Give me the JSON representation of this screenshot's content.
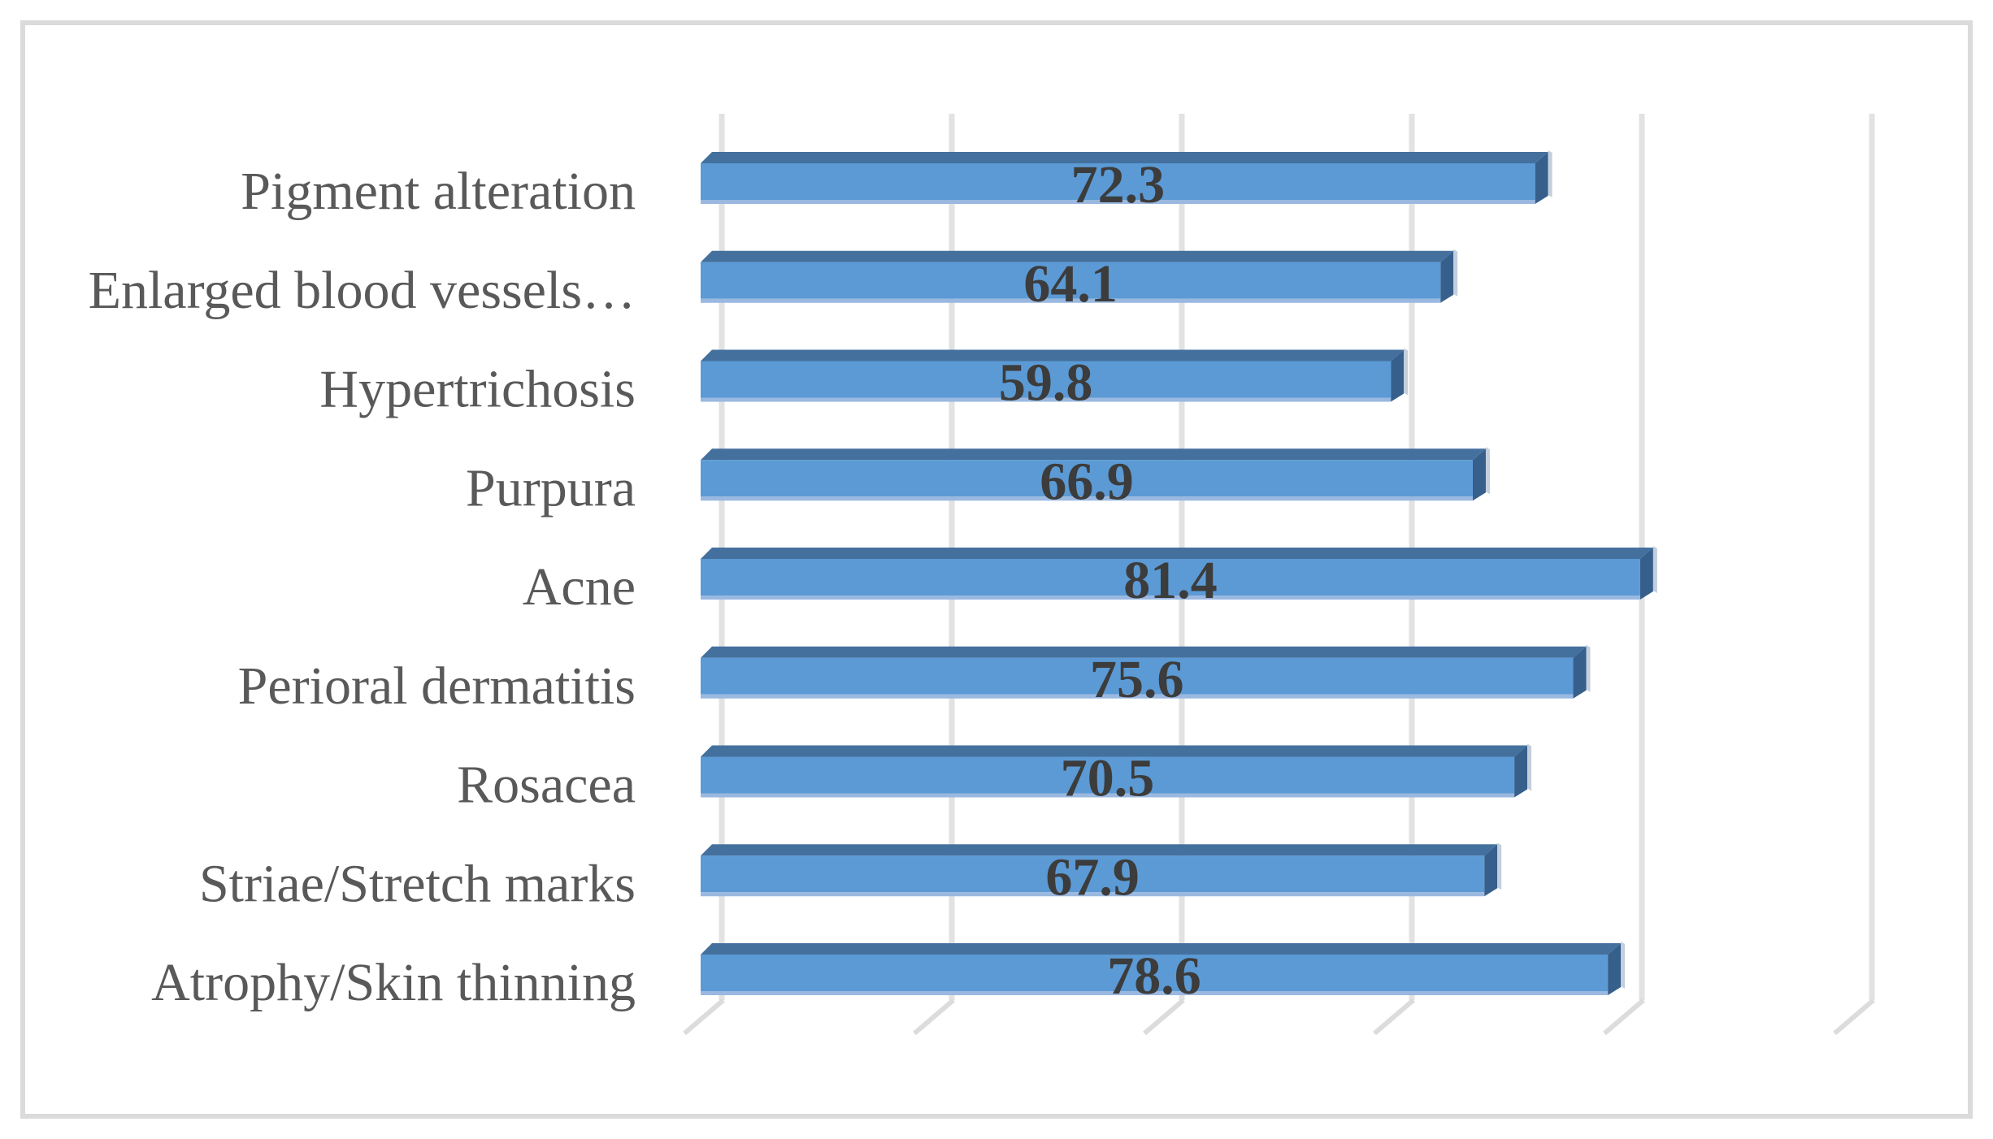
{
  "chart_data": {
    "type": "bar",
    "orientation": "horizontal",
    "style": "3d-excel",
    "title": "",
    "xlabel": "",
    "ylabel": "",
    "categories": [
      "Pigment alteration",
      "Enlarged blood vessels…",
      "Hypertrichosis",
      "Purpura",
      "Acne",
      "Perioral dermatitis",
      "Rosacea",
      "Striae/Stretch marks",
      "Atrophy/Skin thinning"
    ],
    "values": [
      72.3,
      64.1,
      59.8,
      66.9,
      81.4,
      75.6,
      70.5,
      67.9,
      78.6
    ],
    "data_labels": [
      "72.3",
      "64.1",
      "59.8",
      "66.9",
      "81.4",
      "75.6",
      "70.5",
      "67.9",
      "78.6"
    ],
    "xlim": [
      0,
      100
    ],
    "gridline_values": [
      0,
      20,
      40,
      60,
      80,
      100
    ],
    "grid": true,
    "axis_tick_labels_visible": false,
    "legend": "none",
    "colors": {
      "bar_front": "#5B9AD5",
      "bar_top_face": "#44709E",
      "bar_side_face": "#365F8C",
      "bar_side_highlight": "#C4CFDD",
      "bar_bottom_edge": "#9AB8E0",
      "value_label": "#3C3C3C",
      "category_label": "#595959",
      "gridline": "#E2E2E2",
      "tick": "#DCDCDC",
      "chart_border": "#DBDBDB",
      "background": "#FFFFFF"
    }
  }
}
